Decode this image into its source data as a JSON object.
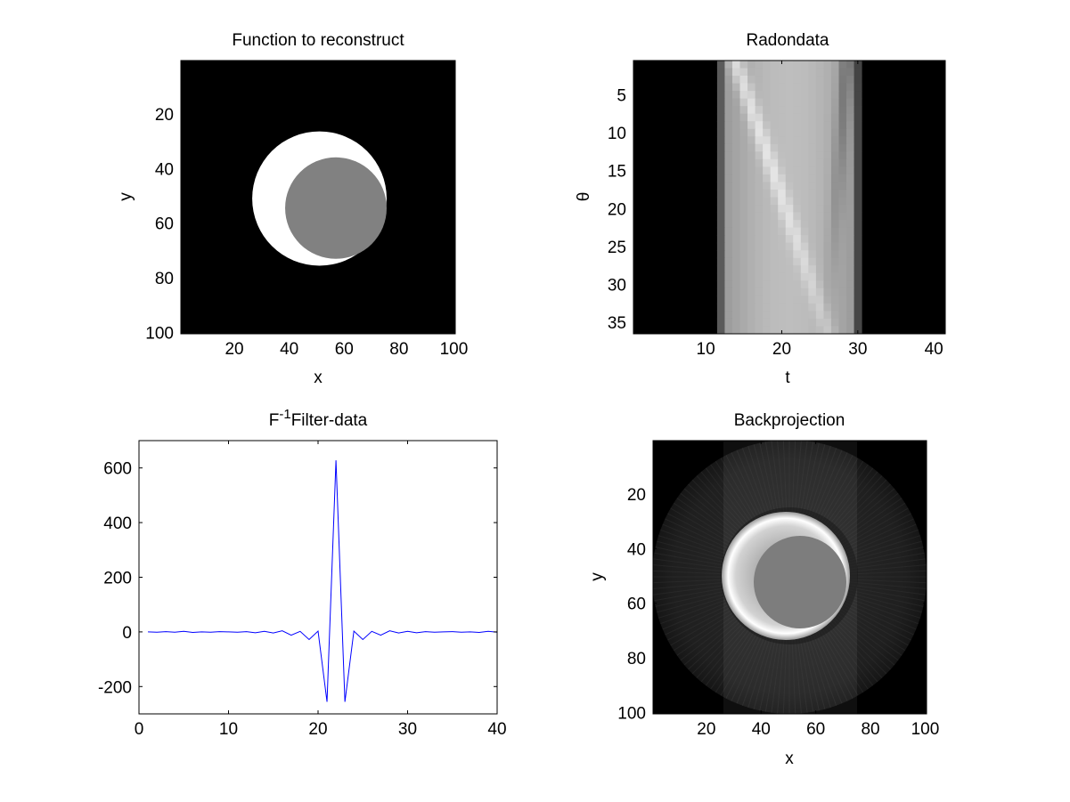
{
  "colors": {
    "background": "#ffffff",
    "axes_bg": "#000000",
    "line": "#0000ff",
    "frame": "#000000"
  },
  "chart_data": [
    {
      "type": "heatmap",
      "title": "Function to reconstruct",
      "xlabel": "x",
      "ylabel": "y",
      "xlim": [
        0.5,
        100.5
      ],
      "ylim": [
        0.5,
        100.5
      ],
      "y_reversed": true,
      "xticks": [
        20,
        40,
        60,
        80,
        100
      ],
      "yticks": [
        20,
        40,
        60,
        80,
        100
      ],
      "colormap": "gray",
      "image": {
        "background": 0,
        "outer_disk": {
          "cx": 51,
          "cy": 51,
          "r": 24.5,
          "value": 1.0
        },
        "inner_disk": {
          "cx": 57,
          "cy": 54.5,
          "r": 18.5,
          "value": 0.52
        }
      }
    },
    {
      "type": "heatmap",
      "title": "Radondata",
      "xlabel": "t",
      "ylabel": "θ",
      "xlim": [
        0.5,
        41.5
      ],
      "ylim": [
        0.5,
        36.5
      ],
      "y_reversed": true,
      "xticks": [
        10,
        20,
        30,
        40
      ],
      "yticks": [
        5,
        10,
        15,
        20,
        25,
        30,
        35
      ],
      "colormap": "gray",
      "image": {
        "nonzero_t_range": [
          12,
          30
        ],
        "rows": 36
      }
    },
    {
      "type": "line",
      "title": "F",
      "title_sup": "-1",
      "title_tail": "Filter-data",
      "xlabel": "",
      "ylabel": "",
      "xlim": [
        0,
        40
      ],
      "ylim": [
        -300,
        700
      ],
      "xticks": [
        0,
        10,
        20,
        30,
        40
      ],
      "yticks": [
        -200,
        0,
        200,
        400,
        600
      ],
      "series": [
        {
          "x": [
            1,
            2,
            3,
            4,
            5,
            6,
            7,
            8,
            9,
            10,
            11,
            12,
            13,
            14,
            15,
            16,
            17,
            18,
            19,
            20,
            21,
            22,
            23,
            24,
            25,
            26,
            27,
            28,
            29,
            30,
            31,
            32,
            33,
            34,
            35,
            36,
            37,
            38,
            39,
            40,
            41
          ],
          "values": [
            0,
            -1,
            1,
            -1,
            2,
            -2,
            0,
            -1,
            1,
            0,
            -1,
            1,
            -3,
            2,
            -4,
            4,
            -12,
            2,
            -28,
            3,
            -256,
            628,
            -256,
            3,
            -28,
            2,
            -12,
            4,
            -4,
            2,
            -3,
            1,
            -1,
            0,
            1,
            -1,
            0,
            -2,
            2,
            -1,
            1
          ]
        }
      ]
    },
    {
      "type": "heatmap",
      "title": "Backprojection",
      "xlabel": "x",
      "ylabel": "y",
      "xlim": [
        0.5,
        100.5
      ],
      "ylim": [
        0.5,
        100.5
      ],
      "y_reversed": true,
      "xticks": [
        20,
        40,
        60,
        80,
        100
      ],
      "yticks": [
        20,
        40,
        60,
        80,
        100
      ],
      "colormap": "gray"
    }
  ]
}
